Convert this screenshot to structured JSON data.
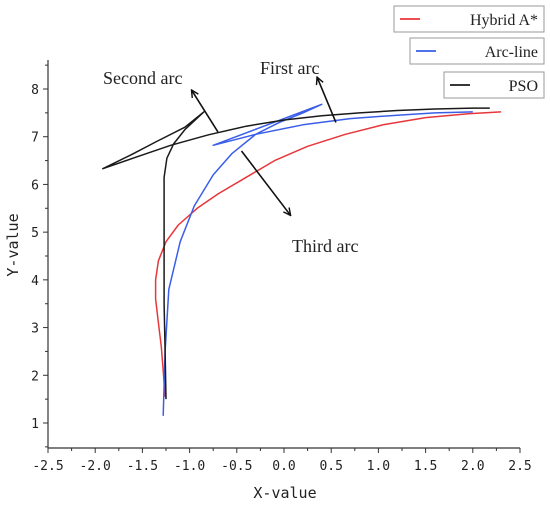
{
  "chart_data": {
    "type": "line",
    "title": "",
    "xlabel": "X-value",
    "ylabel": "Y-value",
    "xlim": [
      -2.5,
      2.5
    ],
    "ylim": [
      0.5,
      8.5
    ],
    "x_ticks": [
      -2.5,
      -2.0,
      -1.5,
      -1.0,
      -0.5,
      0.0,
      0.5,
      1.0,
      1.5,
      2.0,
      2.5
    ],
    "x_tick_labels": [
      "-2.5",
      "-2.0",
      "-1.5",
      "-1.0",
      "-0.5",
      "0.0",
      "0.5",
      "1.0",
      "1.5",
      "2.0",
      "2.5"
    ],
    "y_ticks": [
      1,
      2,
      3,
      4,
      5,
      6,
      7,
      8
    ],
    "y_tick_labels": [
      "1",
      "2",
      "3",
      "4",
      "5",
      "6",
      "7",
      "8"
    ],
    "grid": false,
    "legend_position": "top-right, outside plot",
    "series": [
      {
        "name": "Hybrid A*",
        "color": "#e8363a",
        "x": [
          -1.26,
          -1.28,
          -1.3,
          -1.33,
          -1.36,
          -1.36,
          -1.33,
          -1.25,
          -1.12,
          -0.92,
          -0.7,
          -0.4,
          -0.1,
          0.25,
          0.65,
          1.05,
          1.5,
          1.95,
          2.3
        ],
        "y": [
          1.55,
          2.1,
          2.6,
          3.1,
          3.6,
          4.0,
          4.4,
          4.8,
          5.15,
          5.5,
          5.8,
          6.15,
          6.5,
          6.8,
          7.05,
          7.25,
          7.4,
          7.48,
          7.52
        ]
      },
      {
        "name": "Arc-line",
        "color": "#3a5ee8",
        "x": [
          -1.28,
          -1.26,
          -1.22,
          -1.1,
          -0.95,
          -0.75,
          -0.55,
          -0.3,
          -0.05,
          0.2,
          0.4,
          -0.75,
          -0.3,
          0.2,
          0.7,
          1.2,
          1.6,
          2.0
        ],
        "y": [
          1.15,
          2.5,
          3.8,
          4.8,
          5.55,
          6.2,
          6.65,
          7.05,
          7.3,
          7.5,
          7.68,
          6.82,
          7.05,
          7.25,
          7.38,
          7.45,
          7.5,
          7.52
        ]
      },
      {
        "name": "PSO",
        "color": "#1a1a1a",
        "x": [
          -1.25,
          -1.26,
          -1.27,
          -1.27,
          -1.27,
          -1.24,
          -1.17,
          -1.05,
          -0.85,
          -1.05,
          -1.35,
          -1.62,
          -1.92,
          -1.6,
          -1.2,
          -0.8,
          -0.4,
          0.0,
          0.4,
          0.8,
          1.2,
          1.6,
          2.0,
          2.18
        ],
        "y": [
          1.5,
          2.5,
          3.5,
          4.5,
          6.15,
          6.55,
          6.85,
          7.15,
          7.52,
          7.2,
          6.9,
          6.62,
          6.33,
          6.55,
          6.82,
          7.04,
          7.22,
          7.35,
          7.44,
          7.5,
          7.55,
          7.58,
          7.6,
          7.6
        ]
      }
    ],
    "annotations": [
      {
        "text": "Second arc",
        "arrow_from": [
          -0.7,
          7.1
        ],
        "arrow_to": [
          -0.98,
          7.98
        ]
      },
      {
        "text": "First arc",
        "arrow_from": [
          0.55,
          7.3
        ],
        "arrow_to": [
          0.35,
          8.25
        ]
      },
      {
        "text": "Third arc",
        "arrow_from": [
          -0.45,
          6.7
        ],
        "arrow_to": [
          0.07,
          5.35
        ]
      }
    ]
  }
}
